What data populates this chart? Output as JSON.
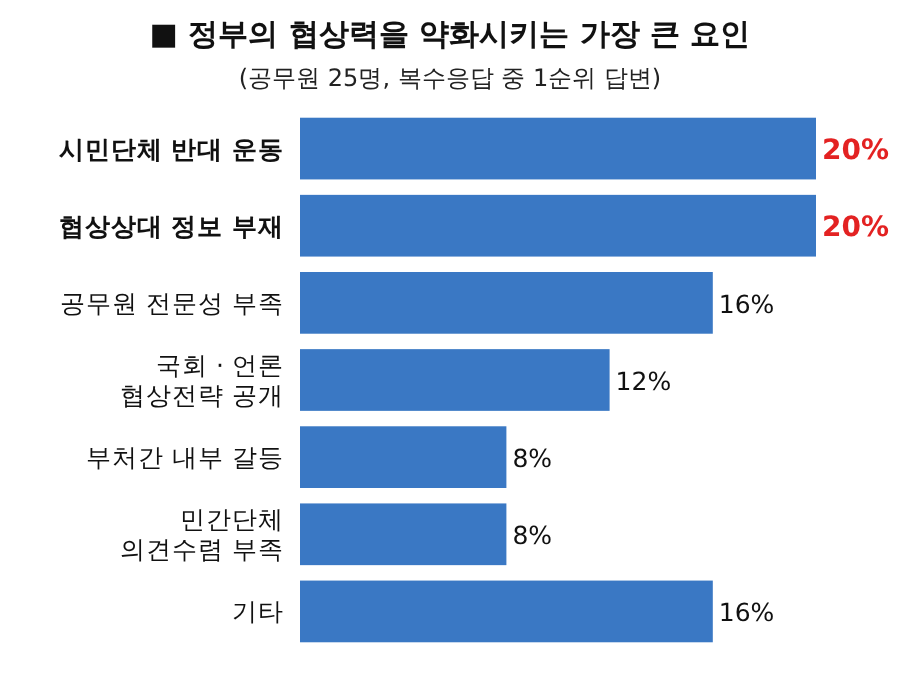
{
  "chart_data": {
    "type": "bar",
    "orientation": "horizontal",
    "title": "■ 정부의 협상력을 약화시키는 가장 큰 요인",
    "subtitle": "(공무원 25명, 복수응답 중 1순위 답변)",
    "categories": [
      "**시민단체 반대 운동**",
      "**협상상대 정보 부재**",
      "공무원 전문성 부족",
      "국회 · 언론\n협상전략 공개",
      "부처간 내부 갈등",
      "민간단체\n의견수렴 부족",
      "기타"
    ],
    "values": [
      20,
      20,
      16,
      12,
      8,
      8,
      16
    ],
    "value_labels": [
      "20%",
      "20%",
      "16%",
      "12%",
      "8%",
      "8%",
      "16%"
    ],
    "color": "#3a78c4"
  }
}
